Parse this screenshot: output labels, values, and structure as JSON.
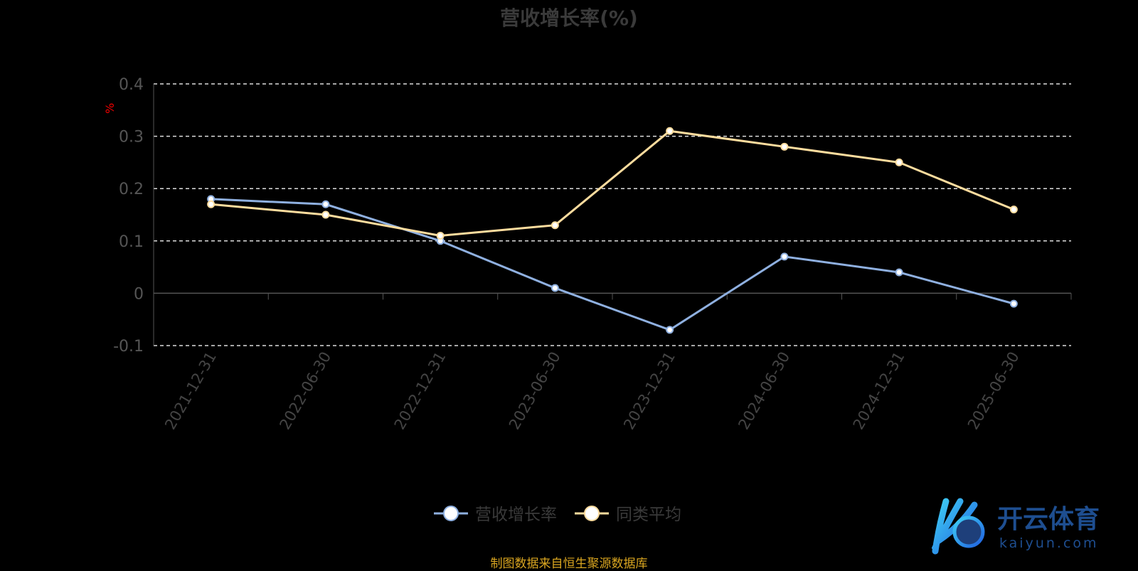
{
  "chart_data": {
    "type": "line",
    "title": "营收增长率(%)",
    "ylabel": "%",
    "ylim": [
      -0.1,
      0.4
    ],
    "yticks": [
      "-0.1",
      "0",
      "0.1",
      "0.2",
      "0.3",
      "0.4"
    ],
    "grid": true,
    "legend_position": "bottom",
    "categories": [
      "2021-12-31",
      "2022-06-30",
      "2022-12-31",
      "2023-06-30",
      "2023-12-31",
      "2024-06-30",
      "2024-12-31",
      "2025-06-30"
    ],
    "series": [
      {
        "name": "营收增长率",
        "color": "#8fb0e0",
        "values": [
          0.18,
          0.17,
          0.1,
          0.01,
          -0.07,
          0.07,
          0.04,
          -0.02
        ]
      },
      {
        "name": "同类平均",
        "color": "#fddc9e",
        "values": [
          0.17,
          0.15,
          0.11,
          0.13,
          0.31,
          0.28,
          0.25,
          0.16
        ]
      }
    ]
  },
  "source": "制图数据来自恒生聚源数据库",
  "watermark": {
    "brand": "开云体育",
    "url": "kaiyun.com"
  }
}
